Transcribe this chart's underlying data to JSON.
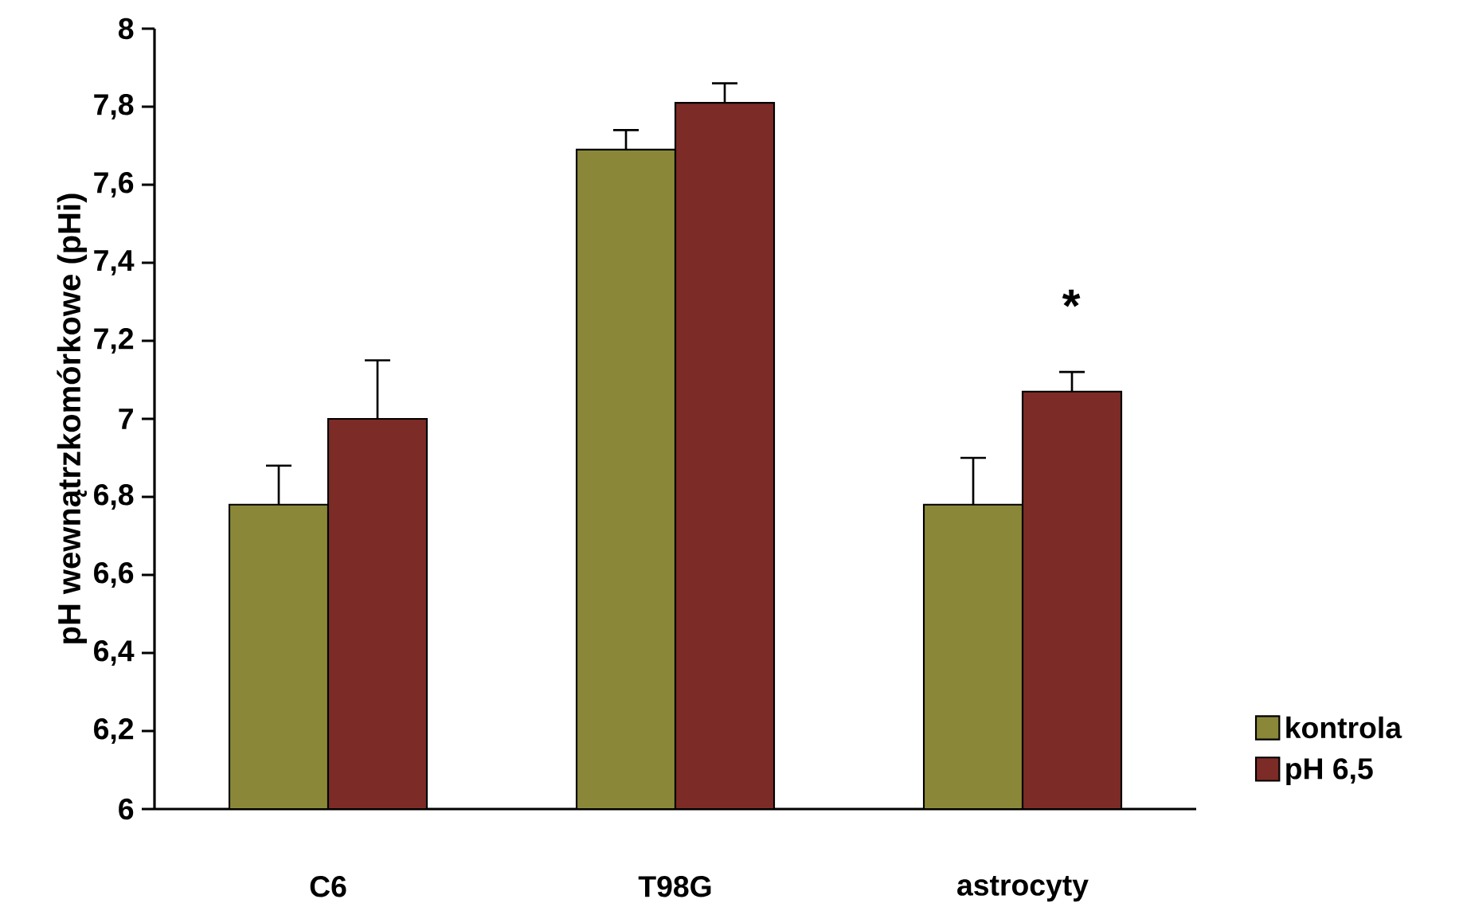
{
  "chart_data": {
    "type": "bar",
    "ylabel": "pH wewnątrzkomórkowe (pHi)",
    "categories": [
      "C6",
      "T98G",
      "astrocyty"
    ],
    "series": [
      {
        "name": "kontrola",
        "color": "#8a8838",
        "values": [
          6.78,
          7.69,
          6.78
        ],
        "errors": [
          0.1,
          0.05,
          0.12
        ]
      },
      {
        "name": "pH 6,5",
        "color": "#7c2b26",
        "values": [
          7.0,
          7.81,
          7.07
        ],
        "errors": [
          0.15,
          0.05,
          0.05
        ]
      }
    ],
    "ylim": [
      6,
      8
    ],
    "yticks": [
      6,
      {
        "value": 6.2,
        "label": "6,2"
      },
      {
        "value": 6.4,
        "label": "6,4"
      },
      {
        "value": 6.6,
        "label": "6,6"
      },
      {
        "value": 6.8,
        "label": "6,8"
      },
      7,
      {
        "value": 7.2,
        "label": "7,2"
      },
      {
        "value": 7.4,
        "label": "7,4"
      },
      {
        "value": 7.6,
        "label": "7,6"
      },
      {
        "value": 7.8,
        "label": "7,8"
      },
      8
    ],
    "annotations": [
      "*"
    ],
    "legend": "bottom right"
  }
}
